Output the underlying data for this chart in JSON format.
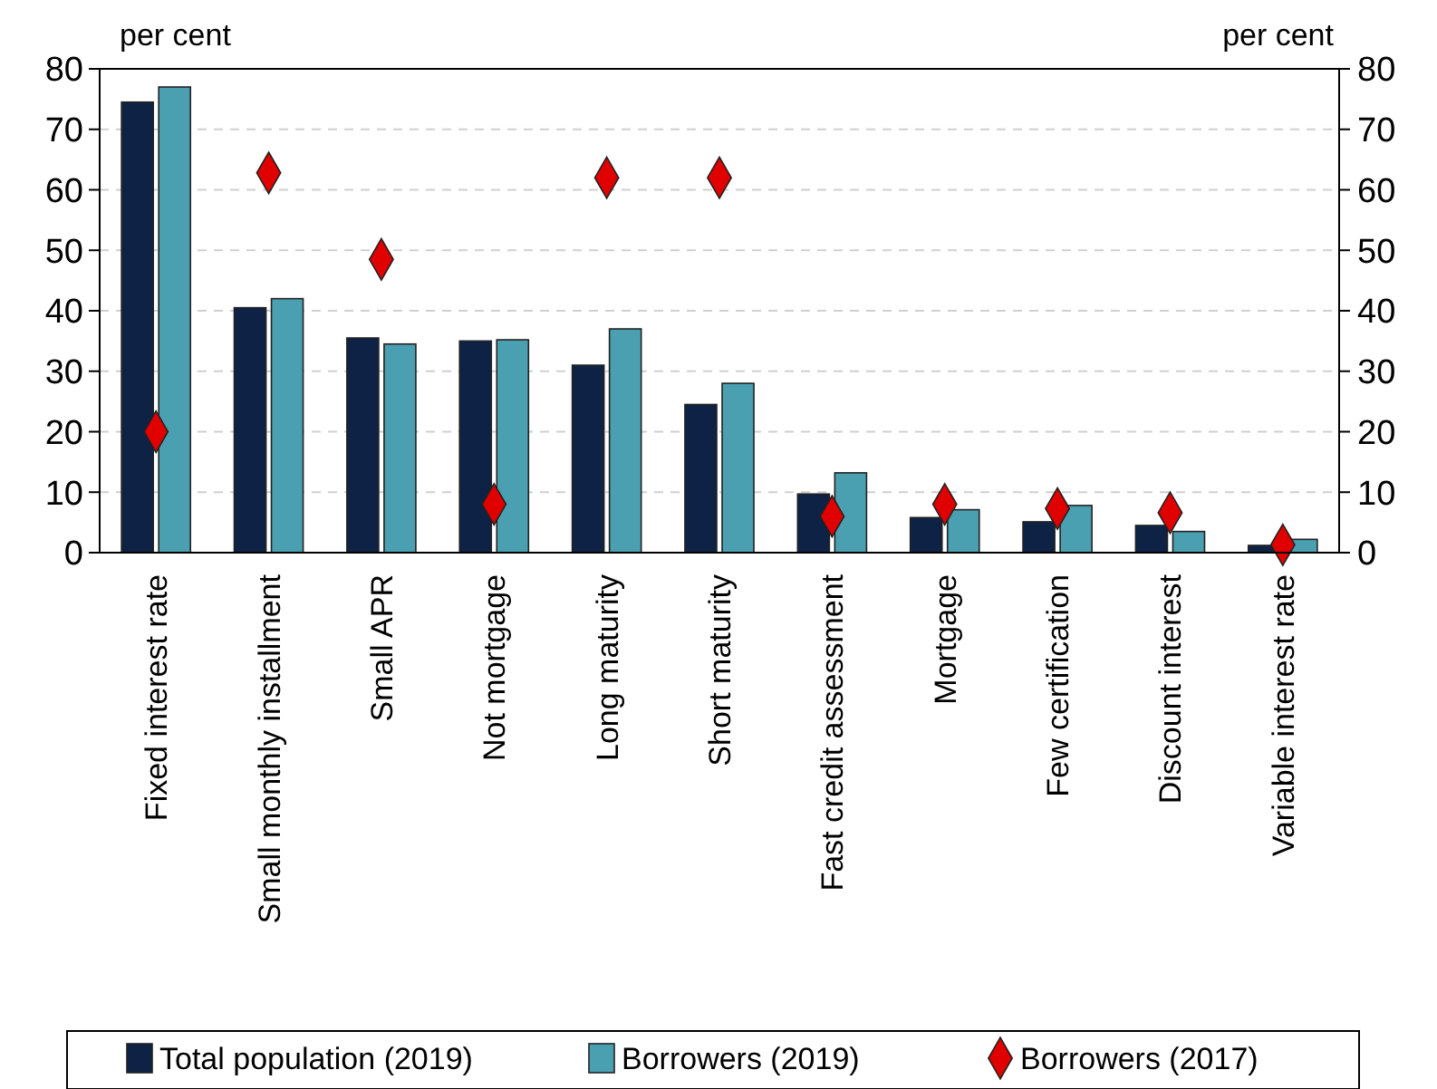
{
  "chart_data": {
    "type": "bar",
    "ylabel": "per cent",
    "y2label": "per cent",
    "categories": [
      "Fixed interest rate",
      "Small monthly installment",
      "Small APR",
      "Not mortgage",
      "Long maturity",
      "Short maturity",
      "Fast credit assessment",
      "Mortgage",
      "Few certification",
      "Discount interest",
      "Variable interest rate"
    ],
    "series": [
      {
        "name": "Total population (2019)",
        "color": "#0d2245",
        "values": [
          74.5,
          40.5,
          35.5,
          35,
          31,
          24.5,
          9.7,
          5.8,
          5.1,
          4.5,
          1.2
        ]
      },
      {
        "name": "Borrowers (2019)",
        "color": "#4aa0b0",
        "values": [
          77,
          42,
          34.5,
          35.2,
          37,
          28,
          13.2,
          7.1,
          7.8,
          3.5,
          2.2
        ]
      },
      {
        "name": "Borrowers (2017)",
        "type": "scatter",
        "marker": "diamond",
        "color": "#e00000",
        "values": [
          20,
          62.8,
          48.5,
          8,
          62,
          62,
          6,
          8,
          7.3,
          6.6,
          1.3
        ]
      }
    ],
    "ylim": [
      0,
      80
    ],
    "yticks": [
      0,
      10,
      20,
      30,
      40,
      50,
      60,
      70,
      80
    ],
    "y2lim": [
      0,
      80
    ],
    "y2ticks": [
      0,
      10,
      20,
      30,
      40,
      50,
      60,
      70,
      80
    ],
    "grid": "y",
    "legend": "bottom"
  }
}
